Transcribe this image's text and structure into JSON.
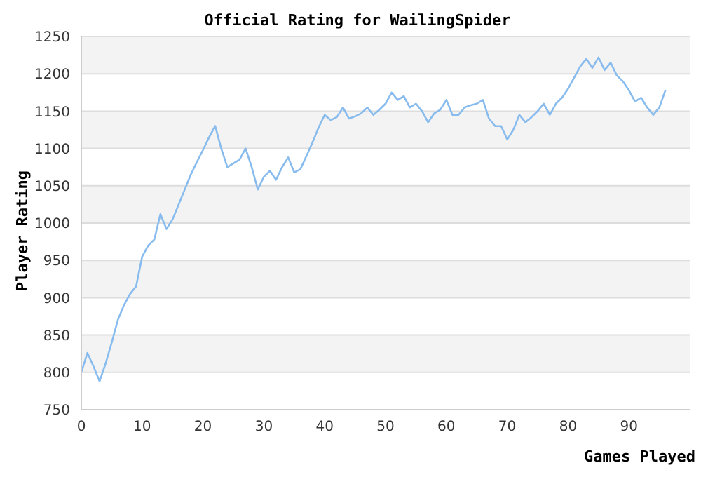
{
  "chart_data": {
    "type": "line",
    "title": "Official Rating for WailingSpider",
    "xlabel": "Games Played",
    "ylabel": "Player Rating",
    "x": [
      0,
      1,
      2,
      3,
      4,
      5,
      6,
      7,
      8,
      9,
      10,
      11,
      12,
      13,
      14,
      15,
      16,
      17,
      18,
      19,
      20,
      21,
      22,
      23,
      24,
      25,
      26,
      27,
      28,
      29,
      30,
      31,
      32,
      33,
      34,
      35,
      36,
      37,
      38,
      39,
      40,
      41,
      42,
      43,
      44,
      45,
      46,
      47,
      48,
      49,
      50,
      51,
      52,
      53,
      54,
      55,
      56,
      57,
      58,
      59,
      60,
      61,
      62,
      63,
      64,
      65,
      66,
      67,
      68,
      69,
      70,
      71,
      72,
      73,
      74,
      75,
      76,
      77,
      78,
      79,
      80,
      81,
      82,
      83,
      84,
      85,
      86,
      87,
      88,
      89,
      90,
      91,
      92,
      93,
      94,
      95,
      96
    ],
    "series": [
      {
        "color": "#88bbee",
        "values": [
          800,
          826,
          808,
          788,
          812,
          840,
          870,
          890,
          905,
          915,
          955,
          970,
          978,
          1012,
          992,
          1005,
          1025,
          1045,
          1065,
          1082,
          1098,
          1115,
          1130,
          1100,
          1075,
          1080,
          1085,
          1100,
          1075,
          1045,
          1062,
          1070,
          1058,
          1075,
          1088,
          1068,
          1072,
          1090,
          1108,
          1128,
          1145,
          1138,
          1142,
          1155,
          1140,
          1143,
          1147,
          1155,
          1145,
          1152,
          1160,
          1175,
          1165,
          1170,
          1155,
          1160,
          1150,
          1135,
          1147,
          1152,
          1165,
          1145,
          1145,
          1155,
          1158,
          1160,
          1165,
          1140,
          1130,
          1130,
          1112,
          1125,
          1145,
          1135,
          1142,
          1150,
          1160,
          1145,
          1160,
          1168,
          1180,
          1195,
          1210,
          1220,
          1208,
          1222,
          1205,
          1215,
          1198,
          1190,
          1178,
          1163,
          1168,
          1155,
          1145,
          1155,
          1178
        ]
      }
    ],
    "xlim": [
      0,
      100
    ],
    "xticks": [
      0,
      10,
      20,
      30,
      40,
      50,
      60,
      70,
      80,
      90
    ],
    "ylim": [
      750,
      1250
    ],
    "yticks": [
      750,
      800,
      850,
      900,
      950,
      1000,
      1050,
      1100,
      1150,
      1200,
      1250
    ],
    "grid": "y",
    "marker": "none",
    "line_style": "solid"
  }
}
